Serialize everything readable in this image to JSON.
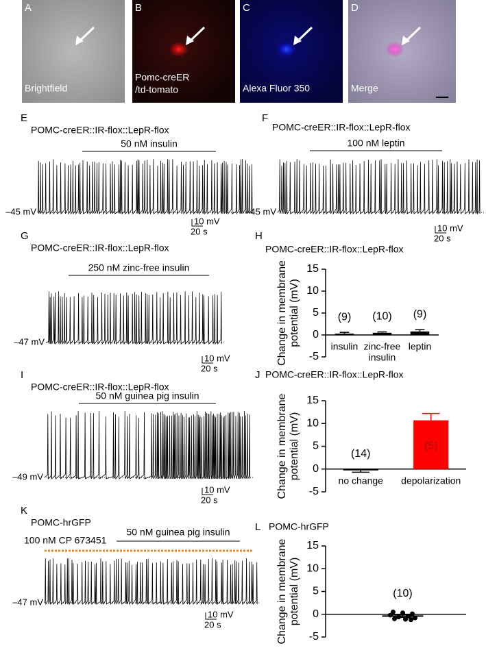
{
  "images": [
    {
      "letter": "A",
      "label": [
        "Brightfield"
      ]
    },
    {
      "letter": "B",
      "label": [
        "Pomc-creER",
        "/td-tomato"
      ]
    },
    {
      "letter": "C",
      "label": [
        "Alexa Fluor 350"
      ]
    },
    {
      "letter": "D",
      "label": [
        "Merge"
      ]
    }
  ],
  "traces": [
    {
      "letter": "E",
      "title": "POMC-creER::IR-flox::LepR-flox",
      "drug": "50 nM insulin",
      "baseline": "–45 mV",
      "scale_y": "10 mV",
      "scale_x": "20 s"
    },
    {
      "letter": "F",
      "title": "POMC-creER::IR-flox::LepR-flox",
      "drug": "100 nM leptin",
      "baseline": "–45 mV",
      "scale_y": "10 mV",
      "scale_x": "20 s"
    },
    {
      "letter": "G",
      "title": "POMC-creER::IR-flox::LepR-flox",
      "drug": "250 nM zinc-free insulin",
      "baseline": "–47 mV",
      "scale_y": "10 mV",
      "scale_x": "20 s"
    },
    {
      "letter": "I",
      "title": "POMC-creER::IR-flox::LepR-flox",
      "drug": "50 nM guinea pig insulin",
      "baseline": "–49 mV",
      "scale_y": "10 mV",
      "scale_x": "20 s"
    },
    {
      "letter": "K",
      "title": "POMC-hrGFP",
      "pre_drug": "100 nM CP 673451",
      "drug": "50 nM guinea pig insulin",
      "baseline": "–47 mV",
      "scale_y": "10 mV",
      "scale_x": "20 s"
    }
  ],
  "chart_data": [
    {
      "type": "bar",
      "letter": "H",
      "title": "POMC-creER::IR-flox::LepR-flox",
      "ylabel": [
        "Change in membrane",
        "potential (mV)"
      ],
      "categories": [
        [
          "insulin"
        ],
        [
          "zinc-free",
          "insulin"
        ],
        [
          "leptin"
        ]
      ],
      "values": [
        0.3,
        0.5,
        0.8
      ],
      "errors": [
        0.3,
        0.2,
        0.4
      ],
      "n_labels": [
        "(9)",
        "(10)",
        "(9)"
      ],
      "colors": [
        "#000000",
        "#000000",
        "#000000"
      ],
      "ylim": [
        -5,
        15
      ],
      "yticks": [
        -5,
        0,
        5,
        10,
        15
      ]
    },
    {
      "type": "bar",
      "letter": "J",
      "title": "POMC-creER::IR-flox::LepR-flox",
      "ylabel": [
        "Change in membrane",
        "potential (mV)"
      ],
      "categories": [
        [
          "no change"
        ],
        [
          "depolarization"
        ]
      ],
      "values": [
        -0.3,
        10.7
      ],
      "errors": [
        0.4,
        1.5
      ],
      "n_labels": [
        "(14)",
        "(5)"
      ],
      "colors": [
        "#000000",
        "#ff0000"
      ],
      "ylim": [
        -5,
        15
      ],
      "yticks": [
        -5,
        0,
        5,
        10,
        15
      ]
    },
    {
      "type": "dot",
      "letter": "L",
      "title": "POMC-hrGFP",
      "ylabel": [
        "Change in membrane",
        "potential (mV)"
      ],
      "values": [
        0.5,
        0.3,
        0.1,
        -0.2,
        -0.4,
        -0.6,
        -0.8,
        -1.0,
        -1.1,
        -1.2
      ],
      "mean": -0.4,
      "error": 0.3,
      "n_label": "(10)",
      "color": "#000000",
      "ylim": [
        -5,
        15
      ],
      "yticks": [
        -5,
        0,
        5,
        10,
        15
      ]
    }
  ]
}
